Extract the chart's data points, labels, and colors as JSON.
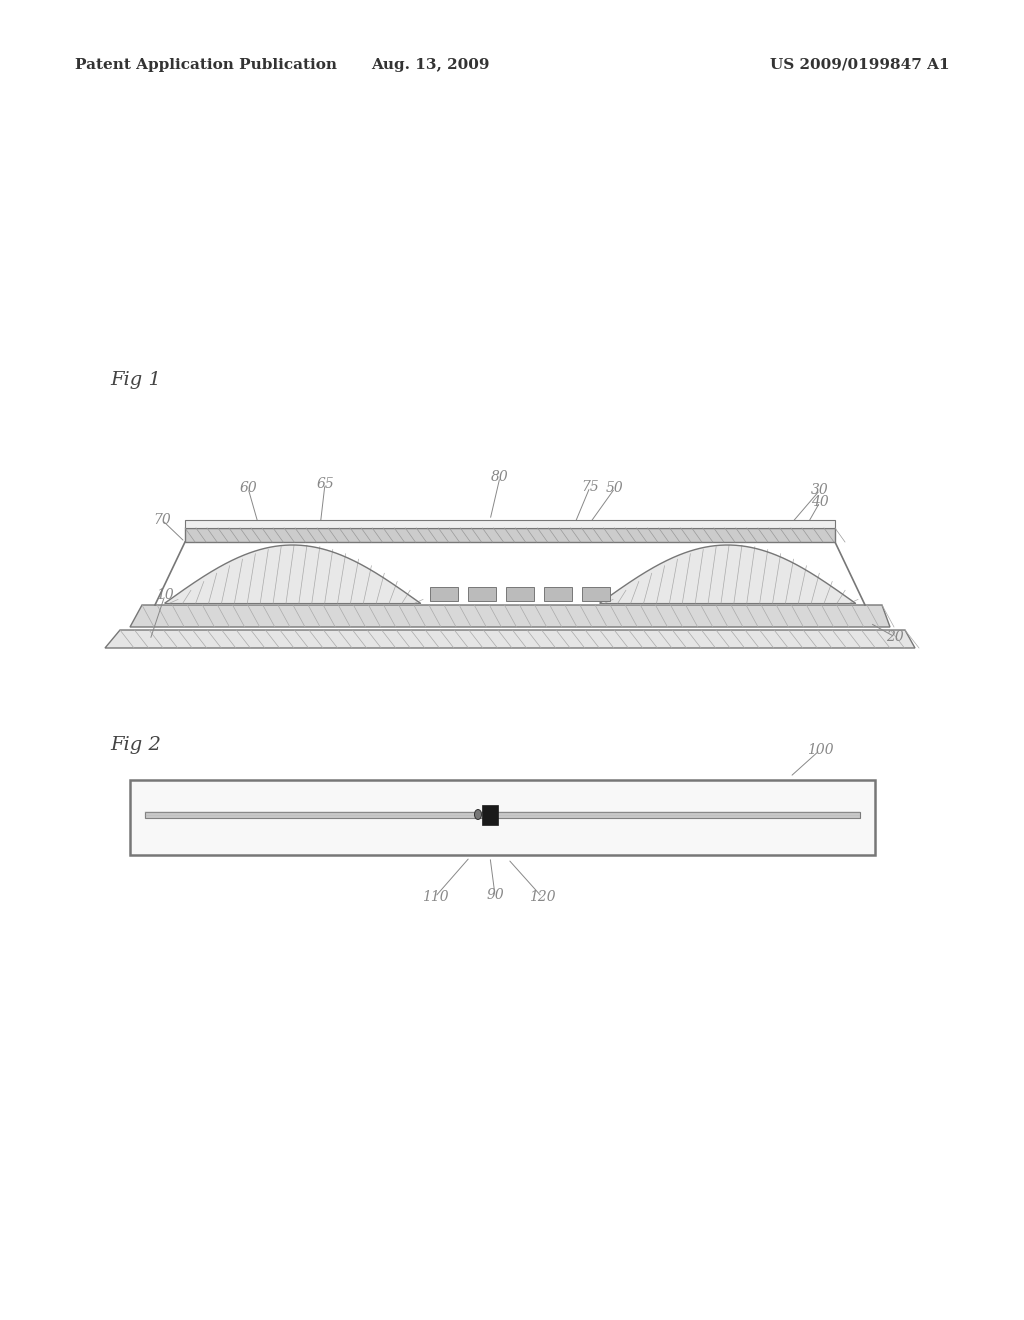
{
  "bg_color": "#ffffff",
  "header_left": "Patent Application Publication",
  "header_mid": "Aug. 13, 2009",
  "header_right": "US 2009/0199847 A1",
  "fig1_label": "Fig 1",
  "fig2_label": "Fig 2",
  "annot_color": "#888888",
  "line_color": "#888888",
  "draw_color": "#777777",
  "hatch_color": "#aaaaaa",
  "header_color": "#333333"
}
